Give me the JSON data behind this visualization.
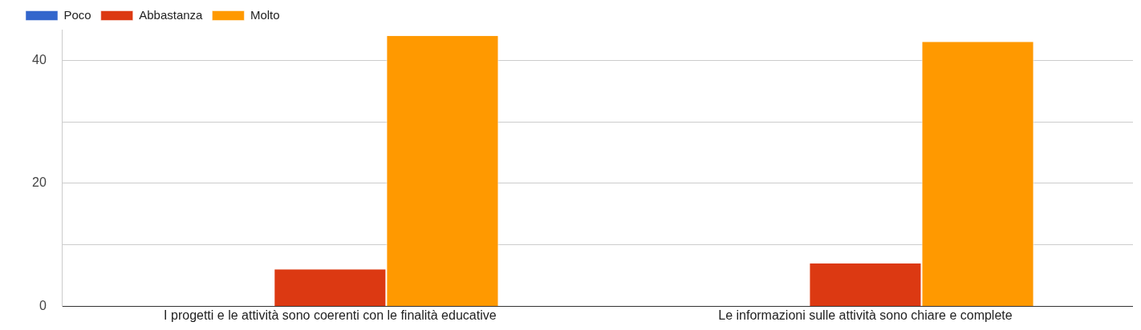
{
  "chart_data": {
    "type": "bar",
    "categories": [
      "I progetti e le attività sono coerenti con le finalità educative",
      "Le informazioni sulle attività sono chiare e complete"
    ],
    "series": [
      {
        "name": "Poco",
        "color": "#3366cc",
        "values": [
          0,
          0
        ]
      },
      {
        "name": "Abbastanza",
        "color": "#dc3912",
        "values": [
          6,
          7
        ]
      },
      {
        "name": "Molto",
        "color": "#ff9900",
        "values": [
          44,
          43
        ]
      }
    ],
    "ylim": [
      0,
      45
    ],
    "yticks": [
      0,
      {
        "value": 10,
        "label": null
      },
      20,
      {
        "value": 30,
        "label": null
      },
      40
    ],
    "grid": "y",
    "legend": "top left"
  }
}
